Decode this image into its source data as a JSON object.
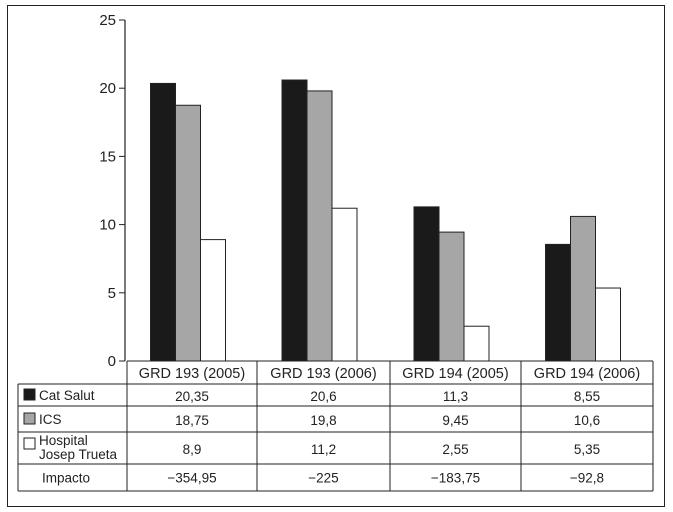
{
  "chart_data": {
    "type": "bar",
    "title": "",
    "xlabel": "",
    "ylabel": "",
    "ylim": [
      0,
      25
    ],
    "yticks": [
      0,
      5,
      10,
      15,
      20,
      25
    ],
    "categories": [
      "GRD 193 (2005)",
      "GRD 193 (2006)",
      "GRD 194 (2005)",
      "GRD 194 (2006)"
    ],
    "series": [
      {
        "name": "Cat Salut",
        "color": "#1a1a1a",
        "values": [
          20.35,
          20.6,
          11.3,
          8.55
        ],
        "labels": [
          "20,35",
          "20,6",
          "11,3",
          "8,55"
        ]
      },
      {
        "name": "ICS",
        "color": "#a6a6a6",
        "values": [
          18.75,
          19.8,
          9.45,
          10.6
        ],
        "labels": [
          "18,75",
          "19,8",
          "9,45",
          "10,6"
        ]
      },
      {
        "name": "Hospital Josep Trueta",
        "name_lines": [
          "Hospital",
          "Josep Trueta"
        ],
        "color": "#ffffff",
        "values": [
          8.9,
          11.2,
          2.55,
          5.35
        ],
        "labels": [
          "8,9",
          "11,2",
          "2,55",
          "5,35"
        ]
      }
    ],
    "extra_rows": [
      {
        "name": "Impacto",
        "labels": [
          "−354,95",
          "−225",
          "−183,75",
          "−92,8"
        ]
      }
    ],
    "legend": "table-left",
    "grid": false
  }
}
